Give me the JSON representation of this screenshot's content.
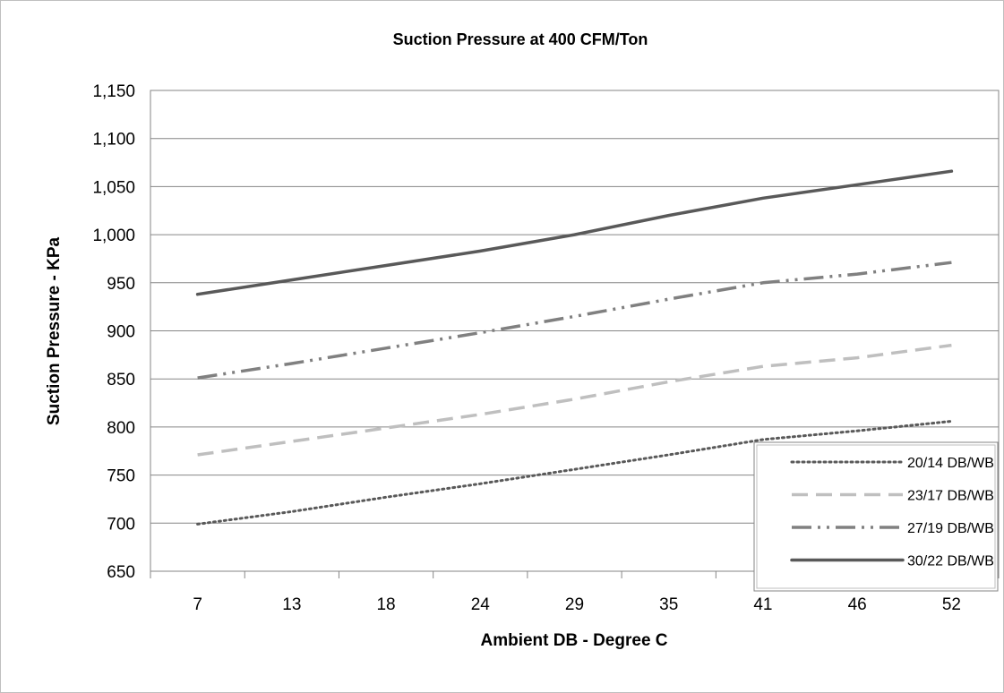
{
  "chart_data": {
    "type": "line",
    "title": "Suction Pressure at 400 CFM/Ton",
    "xlabel": "Ambient DB - Degree C",
    "ylabel": "Suction Pressure - KPa",
    "categories": [
      "7",
      "13",
      "18",
      "24",
      "29",
      "35",
      "41",
      "46",
      "52"
    ],
    "ylim": [
      650,
      1150
    ],
    "yticks": [
      650,
      700,
      750,
      800,
      850,
      900,
      950,
      1000,
      1050,
      1100,
      1150
    ],
    "ytick_labels": [
      "650",
      "700",
      "750",
      "800",
      "850",
      "900",
      "950",
      "1,000",
      "1,050",
      "1,100",
      "1,150"
    ],
    "grid": "horizontal",
    "legend_position": "bottom-right",
    "series": [
      {
        "name": "20/14 DB/WB",
        "values": [
          699,
          712,
          727,
          741,
          756,
          771,
          787,
          796,
          806
        ],
        "color": "#595959",
        "style": "dotted"
      },
      {
        "name": "23/17 DB/WB",
        "values": [
          771,
          785,
          799,
          813,
          829,
          847,
          863,
          872,
          885
        ],
        "color": "#bfbfbf",
        "style": "dashed"
      },
      {
        "name": "27/19 DB/WB",
        "values": [
          851,
          866,
          882,
          898,
          915,
          933,
          950,
          959,
          971
        ],
        "color": "#808080",
        "style": "dash-dot-dot"
      },
      {
        "name": "30/22 DB/WB",
        "values": [
          938,
          953,
          968,
          983,
          1000,
          1020,
          1038,
          1052,
          1066
        ],
        "color": "#595959",
        "style": "solid"
      }
    ]
  }
}
